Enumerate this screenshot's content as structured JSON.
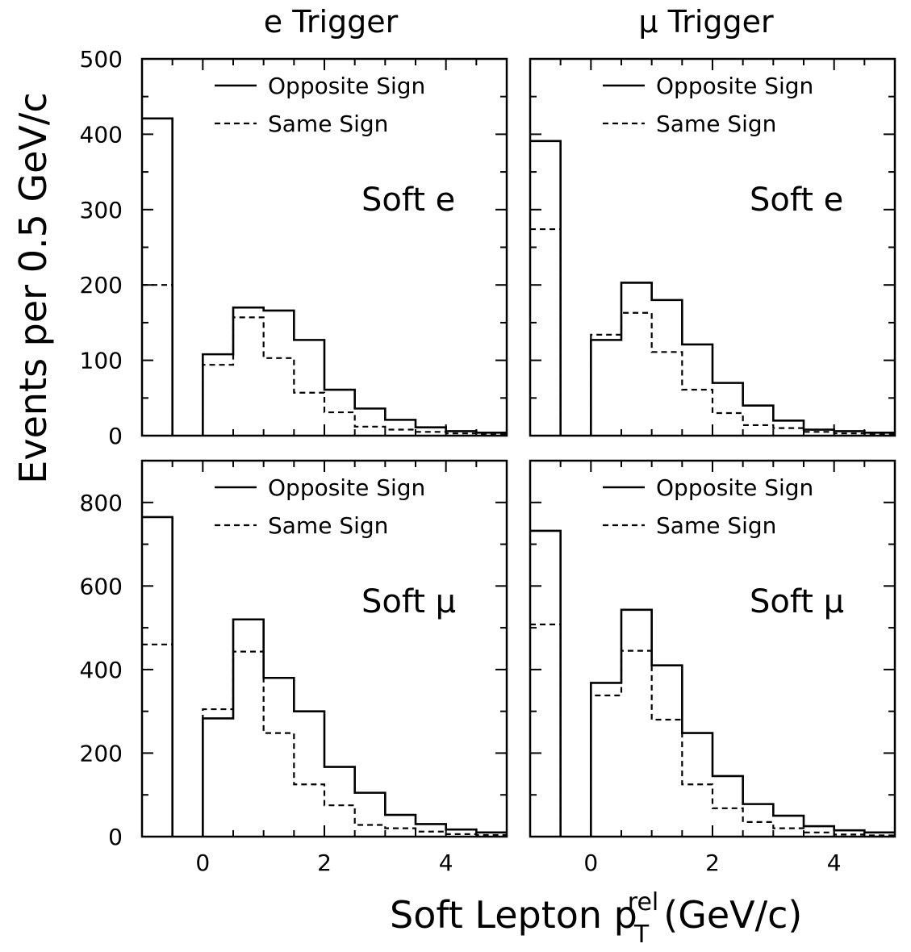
{
  "figure": {
    "column_titles": [
      "e Trigger",
      "μ Trigger"
    ],
    "ylabel": "Events per 0.5 GeV/c",
    "xlabel": {
      "prefix": "Soft Lepton p",
      "sub": "T",
      "sup": "rel",
      "suffix": "(GeV/c)"
    },
    "legend": {
      "opposite": "Opposite Sign",
      "same": "Same Sign"
    }
  },
  "chart_data": [
    {
      "type": "histogram",
      "row": 0,
      "col": 0,
      "title": "e Trigger",
      "panel_label": "Soft e",
      "xlim": [
        -1,
        5
      ],
      "ylim": [
        0,
        500
      ],
      "yticks": [
        0,
        100,
        200,
        300,
        400,
        500
      ],
      "xticks": [
        0,
        2,
        4
      ],
      "underflow": {
        "bin": [
          -1,
          -0.5
        ],
        "opposite": 421,
        "same": 200
      },
      "bin_edges": [
        0,
        0.5,
        1,
        1.5,
        2,
        2.5,
        3,
        3.5,
        4,
        4.5,
        5
      ],
      "series": [
        {
          "name": "Opposite Sign",
          "style": "solid",
          "values": [
            108,
            170,
            166,
            127,
            61,
            36,
            21,
            11,
            6,
            4
          ]
        },
        {
          "name": "Same Sign",
          "style": "dashed",
          "values": [
            94,
            157,
            103,
            57,
            31,
            12,
            8,
            5,
            3,
            2
          ]
        }
      ]
    },
    {
      "type": "histogram",
      "row": 0,
      "col": 1,
      "title": "μ Trigger",
      "panel_label": "Soft e",
      "xlim": [
        -1,
        5
      ],
      "ylim": [
        0,
        500
      ],
      "yticks": [
        0,
        100,
        200,
        300,
        400,
        500
      ],
      "xticks": [
        0,
        2,
        4
      ],
      "underflow": {
        "bin": [
          -1,
          -0.5
        ],
        "opposite": 391,
        "same": 274
      },
      "bin_edges": [
        0,
        0.5,
        1,
        1.5,
        2,
        2.5,
        3,
        3.5,
        4,
        4.5,
        5
      ],
      "series": [
        {
          "name": "Opposite Sign",
          "style": "solid",
          "values": [
            127,
            203,
            180,
            121,
            70,
            40,
            20,
            8,
            6,
            4
          ]
        },
        {
          "name": "Same Sign",
          "style": "dashed",
          "values": [
            134,
            163,
            111,
            61,
            30,
            14,
            10,
            5,
            3,
            2
          ]
        }
      ]
    },
    {
      "type": "histogram",
      "row": 1,
      "col": 0,
      "panel_label": "Soft μ",
      "xlim": [
        -1,
        5
      ],
      "ylim": [
        0,
        900
      ],
      "yticks": [
        0,
        200,
        400,
        600,
        800
      ],
      "xticks": [
        0,
        2,
        4
      ],
      "underflow": {
        "bin": [
          -1,
          -0.5
        ],
        "opposite": 765,
        "same": 460
      },
      "bin_edges": [
        0,
        0.5,
        1,
        1.5,
        2,
        2.5,
        3,
        3.5,
        4,
        4.5,
        5
      ],
      "series": [
        {
          "name": "Opposite Sign",
          "style": "solid",
          "values": [
            283,
            520,
            380,
            300,
            167,
            105,
            52,
            30,
            17,
            10
          ]
        },
        {
          "name": "Same Sign",
          "style": "dashed",
          "values": [
            305,
            443,
            248,
            125,
            75,
            28,
            20,
            12,
            6,
            4
          ]
        }
      ]
    },
    {
      "type": "histogram",
      "row": 1,
      "col": 1,
      "panel_label": "Soft μ",
      "xlim": [
        -1,
        5
      ],
      "ylim": [
        0,
        900
      ],
      "yticks": [
        0,
        200,
        400,
        600,
        800
      ],
      "xticks": [
        0,
        2,
        4
      ],
      "underflow": {
        "bin": [
          -1,
          -0.5
        ],
        "opposite": 732,
        "same": 508
      },
      "bin_edges": [
        0,
        0.5,
        1,
        1.5,
        2,
        2.5,
        3,
        3.5,
        4,
        4.5,
        5
      ],
      "series": [
        {
          "name": "Opposite Sign",
          "style": "solid",
          "values": [
            368,
            543,
            410,
            248,
            145,
            78,
            50,
            25,
            15,
            10
          ]
        },
        {
          "name": "Same Sign",
          "style": "dashed",
          "values": [
            338,
            445,
            280,
            125,
            68,
            35,
            20,
            10,
            5,
            3
          ]
        }
      ]
    }
  ]
}
